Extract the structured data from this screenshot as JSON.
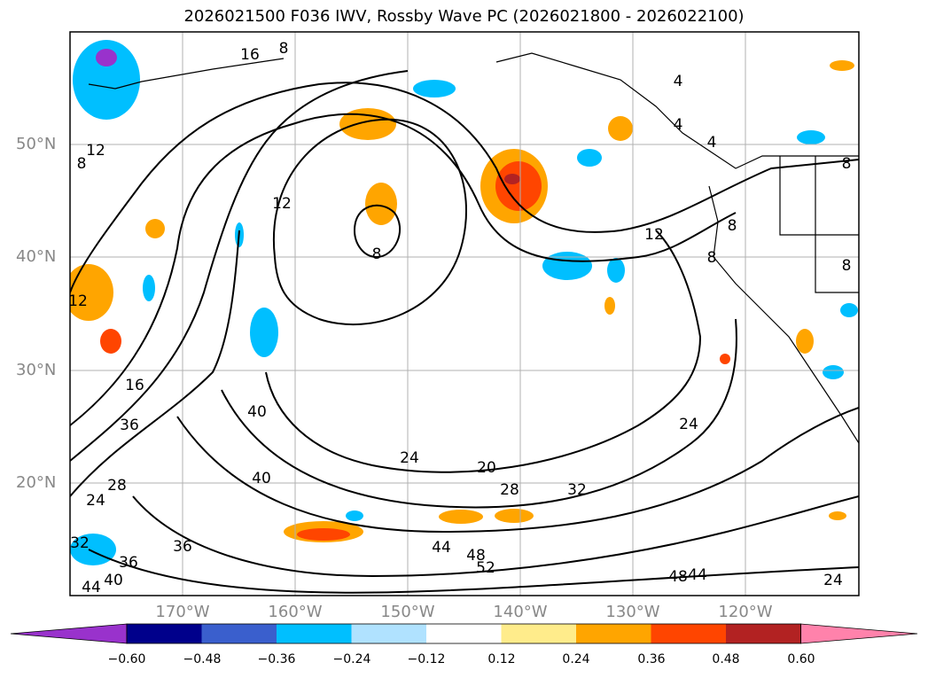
{
  "title": "2026021500 F036 IWV, Rossby Wave PC (2026021800 - 2026022100)",
  "axes": {
    "lat_labels": [
      "50°N",
      "40°N",
      "30°N",
      "20°N"
    ],
    "lon_labels": [
      "170°W",
      "160°W",
      "150°W",
      "140°W",
      "130°W",
      "120°W"
    ]
  },
  "contour_labels": [
    {
      "text": "16"
    },
    {
      "text": "8"
    },
    {
      "text": "12"
    },
    {
      "text": "8"
    },
    {
      "text": "4"
    },
    {
      "text": "4"
    },
    {
      "text": "4"
    },
    {
      "text": "12"
    },
    {
      "text": "12"
    },
    {
      "text": "8"
    },
    {
      "text": "8"
    },
    {
      "text": "12"
    },
    {
      "text": "16"
    },
    {
      "text": "36"
    },
    {
      "text": "28"
    },
    {
      "text": "24"
    },
    {
      "text": "32"
    },
    {
      "text": "36"
    },
    {
      "text": "36"
    },
    {
      "text": "40"
    },
    {
      "text": "44"
    },
    {
      "text": "40"
    },
    {
      "text": "40"
    },
    {
      "text": "24"
    },
    {
      "text": "20"
    },
    {
      "text": "28"
    },
    {
      "text": "32"
    },
    {
      "text": "24"
    },
    {
      "text": "44"
    },
    {
      "text": "48"
    },
    {
      "text": "52"
    },
    {
      "text": "48"
    },
    {
      "text": "44"
    },
    {
      "text": "24"
    },
    {
      "text": "8"
    },
    {
      "text": "8"
    },
    {
      "text": "8"
    }
  ],
  "colorbar": {
    "ticks": [
      "−0.60",
      "−0.48",
      "−0.36",
      "−0.24",
      "−0.12",
      "0.12",
      "0.24",
      "0.36",
      "0.48",
      "0.60"
    ],
    "colors": [
      "#9932cc",
      "#00008b",
      "#3a5fcd",
      "#00bfff",
      "#b0e2ff",
      "#ffffff",
      "#ffec8b",
      "#ffa500",
      "#ff4500",
      "#b22222",
      "#ff82ab"
    ]
  }
}
